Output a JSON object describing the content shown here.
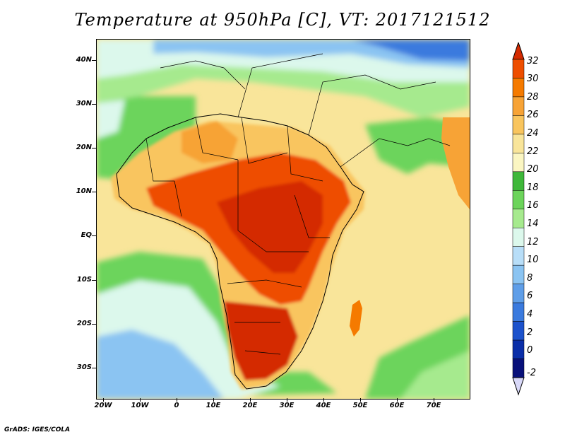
{
  "title": "Temperature at 950hPa [C], VT: 2017121512",
  "credit": "GrADS: IGES/COLA",
  "map": {
    "field": "Temperature at 950hPa",
    "units": "C",
    "valid_time": "2017121512",
    "lon_range": [
      -22,
      80
    ],
    "lat_range": [
      -37,
      45
    ],
    "lat_labels": [
      "40N",
      "30N",
      "20N",
      "10N",
      "EQ",
      "10S",
      "20S",
      "30S"
    ],
    "lat_values": [
      40,
      30,
      20,
      10,
      0,
      -10,
      -20,
      -30
    ],
    "lon_labels": [
      "20W",
      "10W",
      "0",
      "10E",
      "20E",
      "30E",
      "40E",
      "50E",
      "60E",
      "70E"
    ],
    "lon_values": [
      -20,
      -10,
      0,
      10,
      20,
      30,
      40,
      50,
      60,
      70
    ]
  },
  "colorbar": {
    "levels": [
      "32",
      "30",
      "28",
      "26",
      "24",
      "22",
      "20",
      "18",
      "16",
      "14",
      "12",
      "10",
      "8",
      "6",
      "4",
      "2",
      "0",
      "-2"
    ],
    "colors": [
      "#d42a00",
      "#ee4e00",
      "#f57a00",
      "#f7a336",
      "#f9c55e",
      "#f9e59a",
      "#fbf6c2",
      "#3fb83a",
      "#6cd45b",
      "#a6ea8e",
      "#dcf8ec",
      "#b8def8",
      "#8bc4f2",
      "#5f9ee8",
      "#3a7ade",
      "#1c52cc",
      "#0a2ea8",
      "#08107a",
      "#d8d8f8"
    ],
    "top_color": "#d42a00",
    "bottom_color": "#d8d8f8"
  }
}
